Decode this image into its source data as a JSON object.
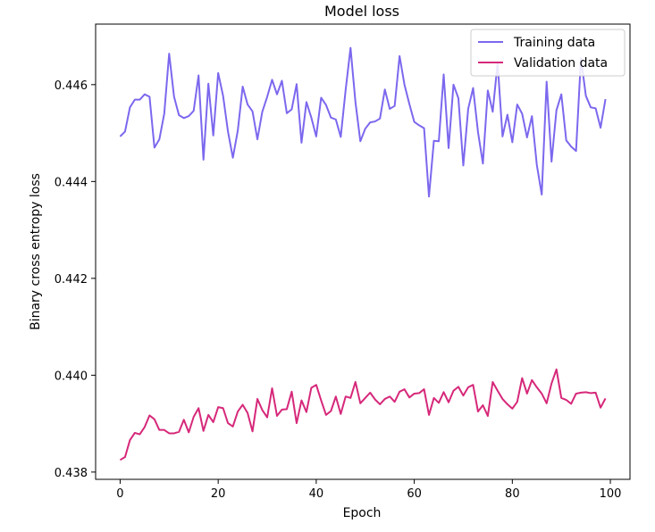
{
  "chart_data": {
    "type": "line",
    "title": "Model loss",
    "xlabel": "Epoch",
    "ylabel": "Binary cross entropy loss",
    "xlim": [
      -5,
      104
    ],
    "ylim": [
      0.43785,
      0.44725
    ],
    "x_ticks": [
      0,
      20,
      40,
      60,
      80,
      100
    ],
    "y_ticks": [
      0.438,
      0.44,
      0.442,
      0.444,
      0.446
    ],
    "x_tick_labels": [
      "0",
      "20",
      "40",
      "60",
      "80",
      "100"
    ],
    "y_tick_labels": [
      "0.438",
      "0.440",
      "0.442",
      "0.444",
      "0.446"
    ],
    "grid": false,
    "legend_position": "top-right",
    "x": [
      0,
      1,
      2,
      3,
      4,
      5,
      6,
      7,
      8,
      9,
      10,
      11,
      12,
      13,
      14,
      15,
      16,
      17,
      18,
      19,
      20,
      21,
      22,
      23,
      24,
      25,
      26,
      27,
      28,
      29,
      30,
      31,
      32,
      33,
      34,
      35,
      36,
      37,
      38,
      39,
      40,
      41,
      42,
      43,
      44,
      45,
      46,
      47,
      48,
      49,
      50,
      51,
      52,
      53,
      54,
      55,
      56,
      57,
      58,
      59,
      60,
      61,
      62,
      63,
      64,
      65,
      66,
      67,
      68,
      69,
      70,
      71,
      72,
      73,
      74,
      75,
      76,
      77,
      78,
      79,
      80,
      81,
      82,
      83,
      84,
      85,
      86,
      87,
      88,
      89,
      90,
      91,
      92,
      93,
      94,
      95,
      96,
      97,
      98,
      99
    ],
    "series": [
      {
        "name": "Training data",
        "color": "#7b68ee",
        "values": [
          0.44493,
          0.44503,
          0.44553,
          0.44569,
          0.44569,
          0.4458,
          0.44575,
          0.4447,
          0.44487,
          0.4454,
          0.44664,
          0.44575,
          0.44537,
          0.44531,
          0.44535,
          0.44546,
          0.44619,
          0.44445,
          0.44602,
          0.44495,
          0.44624,
          0.44577,
          0.44503,
          0.44449,
          0.44505,
          0.44596,
          0.44559,
          0.44545,
          0.44487,
          0.44544,
          0.44575,
          0.4461,
          0.4458,
          0.44608,
          0.44541,
          0.44549,
          0.44601,
          0.4448,
          0.44564,
          0.44532,
          0.44493,
          0.44573,
          0.44558,
          0.44532,
          0.44528,
          0.44492,
          0.44589,
          0.44676,
          0.44564,
          0.44483,
          0.44509,
          0.44522,
          0.44524,
          0.4453,
          0.4459,
          0.4455,
          0.44556,
          0.44659,
          0.446,
          0.4456,
          0.44523,
          0.44516,
          0.4451,
          0.44369,
          0.44484,
          0.44483,
          0.44621,
          0.44469,
          0.446,
          0.44572,
          0.44433,
          0.4455,
          0.44593,
          0.44502,
          0.44437,
          0.44588,
          0.44544,
          0.44645,
          0.44493,
          0.44538,
          0.44481,
          0.44559,
          0.4454,
          0.44491,
          0.44535,
          0.44434,
          0.44373,
          0.44606,
          0.44441,
          0.44547,
          0.4458,
          0.44485,
          0.44472,
          0.44463,
          0.44655,
          0.44577,
          0.44553,
          0.44551,
          0.44511,
          0.4457
        ]
      },
      {
        "name": "Validation data",
        "color": "#d6287a",
        "values": [
          0.43825,
          0.43831,
          0.43866,
          0.43881,
          0.43878,
          0.43893,
          0.43917,
          0.43909,
          0.43887,
          0.43887,
          0.4388,
          0.4388,
          0.43883,
          0.43908,
          0.43882,
          0.43914,
          0.43932,
          0.43885,
          0.43918,
          0.43903,
          0.43934,
          0.43932,
          0.43901,
          0.43894,
          0.43925,
          0.43939,
          0.43922,
          0.43884,
          0.43951,
          0.43928,
          0.43913,
          0.43973,
          0.43916,
          0.43929,
          0.4393,
          0.43966,
          0.43901,
          0.43948,
          0.43924,
          0.43974,
          0.4398,
          0.43948,
          0.43918,
          0.43926,
          0.43956,
          0.4392,
          0.43956,
          0.43953,
          0.43986,
          0.43942,
          0.43953,
          0.43964,
          0.4395,
          0.4394,
          0.43951,
          0.43956,
          0.43945,
          0.43966,
          0.43971,
          0.43954,
          0.43962,
          0.43963,
          0.43971,
          0.43918,
          0.43953,
          0.43943,
          0.43965,
          0.43944,
          0.43968,
          0.43976,
          0.43958,
          0.43975,
          0.4398,
          0.43925,
          0.43938,
          0.43916,
          0.43986,
          0.43968,
          0.43951,
          0.4394,
          0.43931,
          0.43945,
          0.43994,
          0.43962,
          0.4399,
          0.43975,
          0.43962,
          0.43942,
          0.43983,
          0.44012,
          0.43953,
          0.43949,
          0.43941,
          0.43962,
          0.43964,
          0.43965,
          0.43963,
          0.43964,
          0.43933,
          0.43952
        ]
      }
    ]
  }
}
